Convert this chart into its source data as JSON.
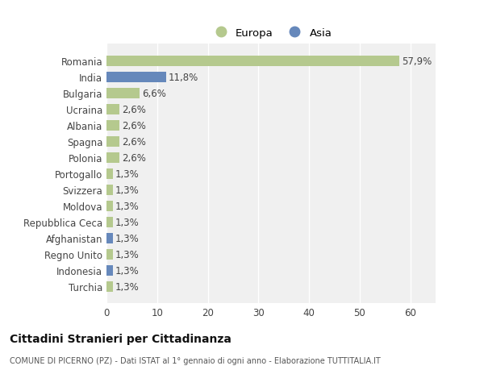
{
  "categories": [
    "Turchia",
    "Indonesia",
    "Regno Unito",
    "Afghanistan",
    "Repubblica Ceca",
    "Moldova",
    "Svizzera",
    "Portogallo",
    "Polonia",
    "Spagna",
    "Albania",
    "Ucraina",
    "Bulgaria",
    "India",
    "Romania"
  ],
  "values": [
    1.3,
    1.3,
    1.3,
    1.3,
    1.3,
    1.3,
    1.3,
    1.3,
    2.6,
    2.6,
    2.6,
    2.6,
    6.6,
    11.8,
    57.9
  ],
  "colors": [
    "#b5c98e",
    "#6688bb",
    "#b5c98e",
    "#6688bb",
    "#b5c98e",
    "#b5c98e",
    "#b5c98e",
    "#b5c98e",
    "#b5c98e",
    "#b5c98e",
    "#b5c98e",
    "#b5c98e",
    "#b5c98e",
    "#6688bb",
    "#b5c98e"
  ],
  "labels": [
    "1,3%",
    "1,3%",
    "1,3%",
    "1,3%",
    "1,3%",
    "1,3%",
    "1,3%",
    "1,3%",
    "2,6%",
    "2,6%",
    "2,6%",
    "2,6%",
    "6,6%",
    "11,8%",
    "57,9%"
  ],
  "europa_color": "#b5c98e",
  "asia_color": "#6688bb",
  "xlim": [
    0,
    65
  ],
  "xticks": [
    0,
    10,
    20,
    30,
    40,
    50,
    60
  ],
  "title": "Cittadini Stranieri per Cittadinanza",
  "subtitle": "COMUNE DI PICERNO (PZ) - Dati ISTAT al 1° gennaio di ogni anno - Elaborazione TUTTITALIA.IT",
  "background_color": "#ffffff",
  "plot_bg_color": "#f0f0f0",
  "grid_color": "#ffffff",
  "label_fontsize": 8.5,
  "bar_height": 0.65
}
